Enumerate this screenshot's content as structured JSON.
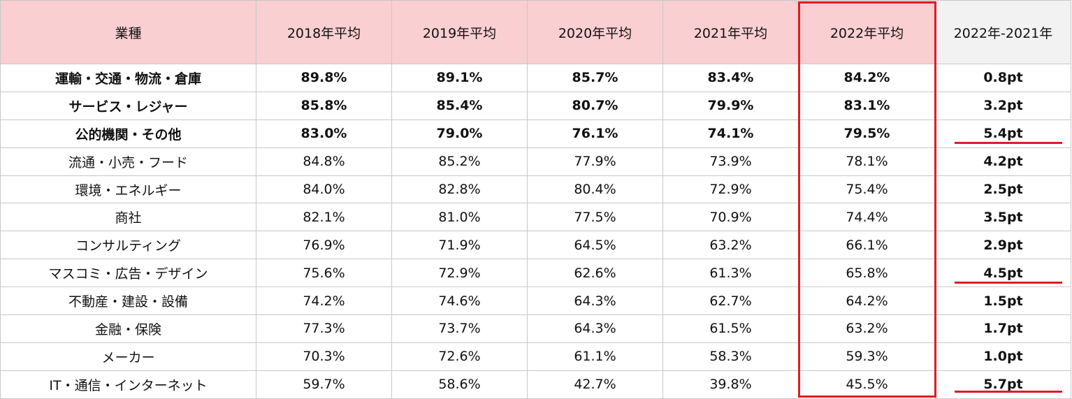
{
  "header": [
    "業種",
    "2018年平均",
    "2019年平均",
    "2020年平均",
    "2021年平均",
    "2022年平均",
    "2022年-2021年"
  ],
  "rows": [
    {
      "industry": "運輸・交通・物流・倉庫",
      "v2018": "89.8%",
      "v2019": "89.1%",
      "v2020": "85.7%",
      "v2021": "83.4%",
      "v2022": "84.2%",
      "diff": "0.8pt",
      "bold": true
    },
    {
      "industry": "サービス・レジャー",
      "v2018": "85.8%",
      "v2019": "85.4%",
      "v2020": "80.7%",
      "v2021": "79.9%",
      "v2022": "83.1%",
      "diff": "3.2pt",
      "bold": true
    },
    {
      "industry": "公的機関・その他",
      "v2018": "83.0%",
      "v2019": "79.0%",
      "v2020": "76.1%",
      "v2021": "74.1%",
      "v2022": "79.5%",
      "diff": "5.4pt",
      "bold": true
    },
    {
      "industry": "流通・小売・フード",
      "v2018": "84.8%",
      "v2019": "85.2%",
      "v2020": "77.9%",
      "v2021": "73.9%",
      "v2022": "78.1%",
      "diff": "4.2pt",
      "bold": false
    },
    {
      "industry": "環境・エネルギー",
      "v2018": "84.0%",
      "v2019": "82.8%",
      "v2020": "80.4%",
      "v2021": "72.9%",
      "v2022": "75.4%",
      "diff": "2.5pt",
      "bold": false
    },
    {
      "industry": "商社",
      "v2018": "82.1%",
      "v2019": "81.0%",
      "v2020": "77.5%",
      "v2021": "70.9%",
      "v2022": "74.4%",
      "diff": "3.5pt",
      "bold": false
    },
    {
      "industry": "コンサルティング",
      "v2018": "76.9%",
      "v2019": "71.9%",
      "v2020": "64.5%",
      "v2021": "63.2%",
      "v2022": "66.1%",
      "diff": "2.9pt",
      "bold": false
    },
    {
      "industry": "マスコミ・広告・デザイン",
      "v2018": "75.6%",
      "v2019": "72.9%",
      "v2020": "62.6%",
      "v2021": "61.3%",
      "v2022": "65.8%",
      "diff": "4.5pt",
      "bold": false
    },
    {
      "industry": "不動産・建設・設備",
      "v2018": "74.2%",
      "v2019": "74.6%",
      "v2020": "64.3%",
      "v2021": "62.7%",
      "v2022": "64.2%",
      "diff": "1.5pt",
      "bold": false
    },
    {
      "industry": "金融・保険",
      "v2018": "77.3%",
      "v2019": "73.7%",
      "v2020": "64.3%",
      "v2021": "61.5%",
      "v2022": "63.2%",
      "diff": "1.7pt",
      "bold": false
    },
    {
      "industry": "メーカー",
      "v2018": "70.3%",
      "v2019": "72.6%",
      "v2020": "61.1%",
      "v2021": "58.3%",
      "v2022": "59.3%",
      "diff": "1.0pt",
      "bold": false
    },
    {
      "industry": "IT・通信・インターネット",
      "v2018": "59.7%",
      "v2019": "58.6%",
      "v2020": "42.7%",
      "v2021": "39.8%",
      "v2022": "45.5%",
      "diff": "5.7pt",
      "bold": false
    }
  ],
  "highlight_color": "#e01c23",
  "header_color": "#f9cfd2",
  "underlined_diffs": [
    "5.4pt",
    "4.5pt",
    "5.7pt"
  ]
}
